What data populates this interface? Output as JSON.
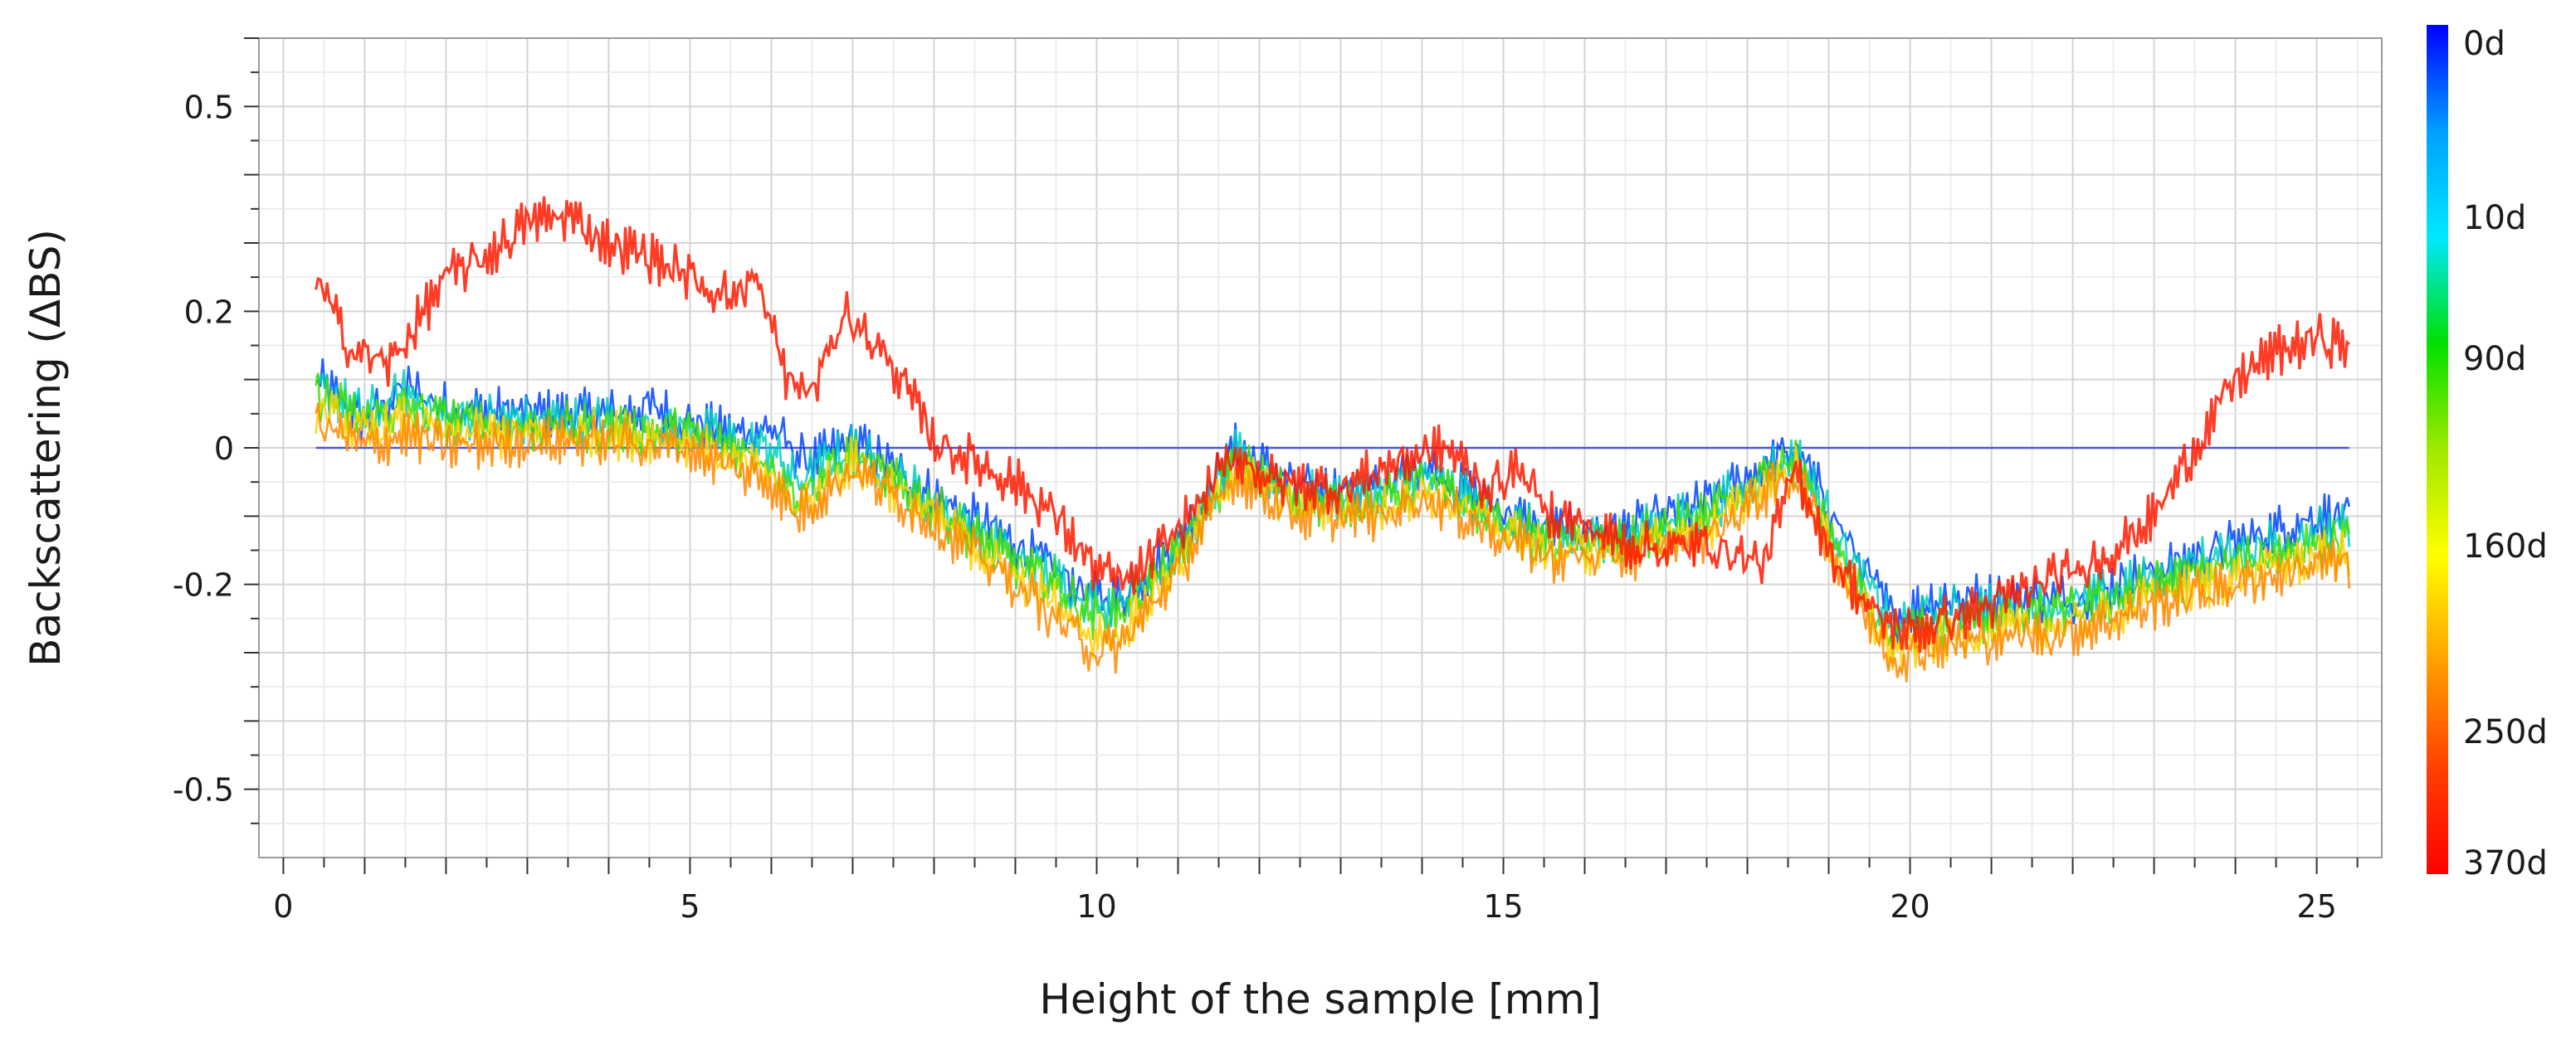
{
  "chart_data": {
    "type": "line",
    "title": "",
    "xlabel": "Height of the sample [mm]",
    "ylabel": "Backscattering (ΔBS)",
    "xlim": [
      -0.3,
      25.8
    ],
    "ylim": [
      -0.6,
      0.6
    ],
    "x_ticks": [
      0,
      5,
      10,
      15,
      20,
      25
    ],
    "y_ticks": [
      {
        "value": 0.5,
        "label": "0.5"
      },
      {
        "value": 0.2,
        "label": "0.2"
      },
      {
        "value": 0,
        "label": "0"
      },
      {
        "value": -0.2,
        "label": "-0.2"
      },
      {
        "value": -0.5,
        "label": "-0.5"
      }
    ],
    "grid": true,
    "colorbar": {
      "labels": [
        "0d",
        "10d",
        "90d",
        "160d",
        "250d",
        "370d"
      ],
      "colors": [
        "#0000ff",
        "#00a0ff",
        "#00e8ff",
        "#00e000",
        "#a0e800",
        "#ffff00",
        "#ffa000",
        "#ff4000",
        "#ff0000"
      ]
    },
    "series": [
      {
        "color": "#0044ff",
        "x": [
          0.4,
          1.0,
          1.5,
          2.0,
          3.0,
          4.0,
          4.5,
          5.5,
          6.0,
          6.3,
          6.5,
          7.0,
          8.0,
          9.0,
          9.5,
          10.0,
          10.3,
          11.0,
          11.7,
          12.5,
          13.5,
          14.0,
          14.5,
          15.0,
          15.5,
          16.5,
          17.5,
          18.3,
          18.6,
          19.3,
          19.8,
          20.3,
          21.0,
          22.0,
          23.0,
          24.0,
          25.0,
          25.4
        ],
        "y": [
          0.1,
          0.04,
          0.09,
          0.06,
          0.05,
          0.05,
          0.06,
          0.02,
          0.03,
          -0.01,
          -0.02,
          0.01,
          -0.07,
          -0.14,
          -0.18,
          -0.22,
          -0.22,
          -0.14,
          0.0,
          -0.06,
          -0.06,
          -0.02,
          -0.06,
          -0.09,
          -0.12,
          -0.12,
          -0.08,
          -0.02,
          0.0,
          -0.15,
          -0.25,
          -0.22,
          -0.22,
          -0.22,
          -0.18,
          -0.14,
          -0.1,
          -0.1
        ]
      },
      {
        "color": "#00d0c0",
        "x": [
          0.4,
          1.0,
          1.5,
          2.0,
          3.0,
          4.0,
          5.0,
          5.5,
          6.0,
          6.3,
          7.0,
          8.0,
          9.0,
          9.5,
          10.0,
          10.3,
          11.0,
          11.7,
          12.5,
          13.5,
          14.0,
          14.5,
          15.0,
          15.5,
          16.5,
          17.5,
          18.3,
          18.6,
          19.3,
          19.8,
          20.3,
          21.0,
          22.0,
          23.0,
          24.0,
          25.0,
          25.4
        ],
        "y": [
          0.09,
          0.05,
          0.08,
          0.05,
          0.04,
          0.04,
          0.03,
          0.01,
          0.0,
          -0.05,
          0.0,
          -0.08,
          -0.16,
          -0.19,
          -0.23,
          -0.22,
          -0.15,
          -0.01,
          -0.07,
          -0.07,
          -0.04,
          -0.07,
          -0.1,
          -0.13,
          -0.13,
          -0.09,
          -0.03,
          -0.01,
          -0.17,
          -0.26,
          -0.24,
          -0.23,
          -0.23,
          -0.19,
          -0.15,
          -0.12,
          -0.12
        ]
      },
      {
        "color": "#44dd00",
        "x": [
          0.4,
          1.0,
          1.5,
          2.0,
          3.0,
          4.0,
          5.0,
          5.5,
          6.0,
          6.3,
          7.0,
          8.0,
          9.0,
          9.5,
          10.0,
          10.3,
          11.0,
          11.7,
          12.5,
          13.5,
          14.0,
          14.5,
          15.0,
          15.5,
          16.5,
          17.5,
          18.3,
          18.6,
          19.3,
          19.8,
          20.3,
          21.0,
          22.0,
          23.0,
          24.0,
          25.0,
          25.4
        ],
        "y": [
          0.08,
          0.04,
          0.06,
          0.04,
          0.03,
          0.03,
          0.02,
          0.0,
          -0.02,
          -0.07,
          -0.01,
          -0.09,
          -0.17,
          -0.2,
          -0.25,
          -0.24,
          -0.16,
          -0.02,
          -0.08,
          -0.08,
          -0.05,
          -0.08,
          -0.11,
          -0.14,
          -0.14,
          -0.1,
          -0.04,
          -0.02,
          -0.19,
          -0.28,
          -0.26,
          -0.25,
          -0.24,
          -0.2,
          -0.17,
          -0.14,
          -0.14
        ]
      },
      {
        "color": "#ffd000",
        "x": [
          0.4,
          1.0,
          1.5,
          2.0,
          3.0,
          4.0,
          5.0,
          5.5,
          6.0,
          6.3,
          7.0,
          8.0,
          9.0,
          9.5,
          10.0,
          10.3,
          11.0,
          11.7,
          12.5,
          13.5,
          14.0,
          14.5,
          15.0,
          15.5,
          16.5,
          17.5,
          18.3,
          18.6,
          19.3,
          19.8,
          20.3,
          21.0,
          22.0,
          23.0,
          24.0,
          25.0,
          25.4
        ],
        "y": [
          0.06,
          0.02,
          0.04,
          0.02,
          0.02,
          0.02,
          0.01,
          -0.02,
          -0.04,
          -0.09,
          -0.02,
          -0.1,
          -0.19,
          -0.23,
          -0.28,
          -0.27,
          -0.17,
          -0.03,
          -0.09,
          -0.09,
          -0.06,
          -0.09,
          -0.12,
          -0.15,
          -0.15,
          -0.12,
          -0.05,
          -0.03,
          -0.21,
          -0.3,
          -0.28,
          -0.27,
          -0.26,
          -0.22,
          -0.19,
          -0.16,
          -0.16
        ]
      },
      {
        "color": "#ff8800",
        "x": [
          0.4,
          1.0,
          1.5,
          2.0,
          3.0,
          4.0,
          5.0,
          5.5,
          6.0,
          6.3,
          7.0,
          8.0,
          9.0,
          9.5,
          10.0,
          10.3,
          11.0,
          11.7,
          12.5,
          13.5,
          14.0,
          14.5,
          15.0,
          15.5,
          16.5,
          17.5,
          18.3,
          18.6,
          19.3,
          19.8,
          20.3,
          21.0,
          22.0,
          23.0,
          24.0,
          25.0,
          25.4
        ],
        "y": [
          0.04,
          0.0,
          0.02,
          0.0,
          0.01,
          0.01,
          0.0,
          -0.03,
          -0.05,
          -0.1,
          -0.03,
          -0.11,
          -0.2,
          -0.25,
          -0.3,
          -0.29,
          -0.18,
          -0.04,
          -0.1,
          -0.1,
          -0.07,
          -0.1,
          -0.13,
          -0.16,
          -0.16,
          -0.13,
          -0.06,
          -0.04,
          -0.22,
          -0.31,
          -0.29,
          -0.28,
          -0.27,
          -0.23,
          -0.2,
          -0.17,
          -0.17
        ]
      },
      {
        "color": "#ff1a00",
        "x": [
          0.4,
          0.8,
          1.3,
          2.0,
          2.5,
          3.0,
          3.5,
          4.0,
          4.5,
          5.0,
          5.5,
          5.8,
          6.2,
          6.5,
          6.9,
          7.5,
          8.0,
          9.0,
          9.5,
          10.0,
          10.4,
          11.0,
          11.7,
          12.2,
          13.0,
          13.5,
          14.0,
          14.3,
          14.8,
          15.2,
          15.5,
          16.5,
          17.0,
          17.5,
          18.2,
          18.6,
          19.0,
          19.6,
          20.0,
          20.5,
          21.0,
          22.0,
          22.5,
          23.0,
          23.5,
          24.0,
          24.5,
          25.0,
          25.4
        ],
        "y": [
          0.25,
          0.15,
          0.12,
          0.25,
          0.28,
          0.33,
          0.34,
          0.3,
          0.28,
          0.25,
          0.22,
          0.25,
          0.1,
          0.08,
          0.2,
          0.12,
          0.01,
          -0.05,
          -0.1,
          -0.18,
          -0.2,
          -0.12,
          -0.01,
          -0.05,
          -0.06,
          -0.03,
          -0.01,
          0.0,
          -0.06,
          -0.03,
          -0.09,
          -0.14,
          -0.15,
          -0.14,
          -0.17,
          -0.03,
          -0.15,
          -0.25,
          -0.27,
          -0.25,
          -0.23,
          -0.18,
          -0.15,
          -0.1,
          0.0,
          0.1,
          0.14,
          0.16,
          0.15
        ]
      }
    ],
    "reference_line": {
      "y": 0,
      "color": "#4b55e8"
    }
  }
}
